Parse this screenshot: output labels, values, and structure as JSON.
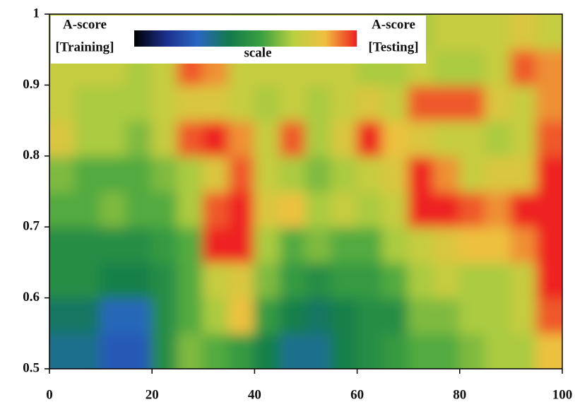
{
  "chart_data": {
    "type": "heatmap",
    "legend": {
      "left": [
        "A-score",
        "[Training]"
      ],
      "center": "scale",
      "right": [
        "A-score",
        "[Testing]"
      ]
    },
    "colorscale": [
      "#000000",
      "#1c2f8c",
      "#2a66c4",
      "#127a4a",
      "#3aa040",
      "#b8d040",
      "#f0c040",
      "#ee2020"
    ],
    "x": [
      2.5,
      7.5,
      12.5,
      17.5,
      22.5,
      27.5,
      32.5,
      37.5,
      42.5,
      47.5,
      52.5,
      57.5,
      62.5,
      67.5,
      72.5,
      77.5,
      82.5,
      87.5,
      92.5,
      97.5
    ],
    "y": [
      0.525,
      0.575,
      0.625,
      0.675,
      0.725,
      0.775,
      0.825,
      0.875,
      0.925,
      0.975
    ],
    "z": [
      [
        0.35,
        0.35,
        0.25,
        0.25,
        0.5,
        0.65,
        0.6,
        0.55,
        0.45,
        0.35,
        0.35,
        0.45,
        0.5,
        0.55,
        0.6,
        0.6,
        0.65,
        0.7,
        0.7,
        0.85
      ],
      [
        0.4,
        0.4,
        0.3,
        0.3,
        0.5,
        0.6,
        0.7,
        0.85,
        0.55,
        0.45,
        0.4,
        0.45,
        0.5,
        0.5,
        0.65,
        0.65,
        0.7,
        0.7,
        0.75,
        0.95
      ],
      [
        0.5,
        0.5,
        0.45,
        0.45,
        0.5,
        0.6,
        0.75,
        0.8,
        0.65,
        0.55,
        0.5,
        0.55,
        0.55,
        0.6,
        0.7,
        0.75,
        0.7,
        0.7,
        0.75,
        1
      ],
      [
        0.5,
        0.5,
        0.5,
        0.5,
        0.55,
        0.6,
        1,
        1,
        0.7,
        0.6,
        0.65,
        0.6,
        0.6,
        0.7,
        0.75,
        0.8,
        0.85,
        0.85,
        0.9,
        1
      ],
      [
        0.6,
        0.6,
        0.65,
        0.6,
        0.6,
        0.7,
        0.95,
        1,
        0.8,
        0.85,
        0.7,
        0.75,
        0.7,
        0.75,
        1,
        1,
        0.95,
        0.9,
        1,
        1
      ],
      [
        0.65,
        0.6,
        0.6,
        0.6,
        0.65,
        0.7,
        0.8,
        0.95,
        0.75,
        0.7,
        0.65,
        0.7,
        0.75,
        0.8,
        1,
        0.9,
        0.75,
        0.8,
        0.8,
        1
      ],
      [
        0.8,
        0.7,
        0.7,
        0.65,
        0.75,
        0.95,
        1,
        0.9,
        0.75,
        0.95,
        0.7,
        0.8,
        1,
        0.85,
        0.8,
        0.75,
        0.75,
        0.7,
        0.75,
        0.95
      ],
      [
        0.75,
        0.7,
        0.7,
        0.7,
        0.75,
        0.8,
        0.8,
        0.75,
        0.7,
        0.75,
        0.7,
        0.75,
        0.8,
        0.75,
        0.95,
        0.95,
        0.95,
        0.8,
        0.75,
        0.9
      ],
      [
        0.75,
        0.75,
        0.75,
        0.7,
        0.75,
        0.95,
        0.9,
        0.75,
        0.75,
        0.75,
        0.75,
        0.75,
        0.7,
        0.7,
        0.75,
        0.7,
        0.7,
        0.75,
        0.95,
        0.9
      ],
      [
        0.75,
        0.75,
        0.8,
        0.75,
        0.75,
        0.75,
        0.75,
        0.7,
        0.7,
        0.75,
        0.75,
        0.75,
        0.75,
        0.7,
        0.7,
        0.75,
        0.75,
        0.75,
        0.8,
        0.75
      ]
    ],
    "xlim": [
      0,
      100
    ],
    "xticks": [
      0,
      20,
      40,
      60,
      80,
      100
    ],
    "ylim": [
      0.5,
      1
    ],
    "yticks": [
      0.5,
      0.6,
      0.7,
      0.8,
      0.9,
      1
    ]
  }
}
